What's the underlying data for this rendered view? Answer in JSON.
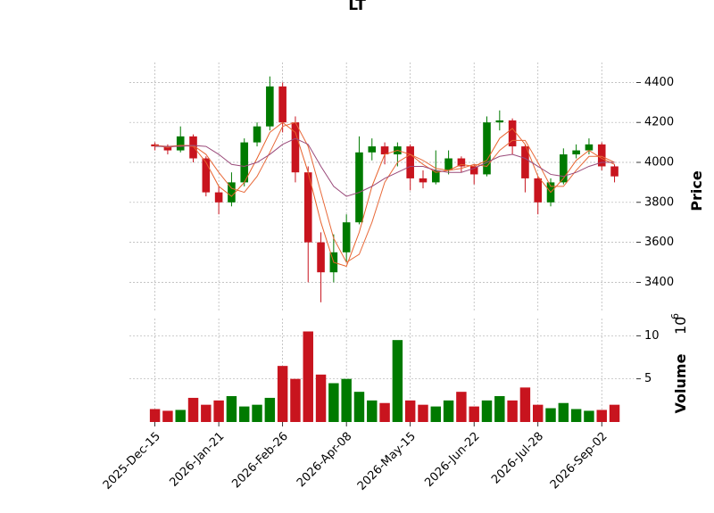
{
  "chart_data": {
    "type": "candlestick",
    "title": "LT",
    "ylabel": "Price",
    "grid": true,
    "up_color": "#007a00",
    "down_color": "#c8141e",
    "xlim": [
      -2,
      37.5
    ],
    "xticks": [
      {
        "value": 0,
        "label": "2025-Dec-15"
      },
      {
        "value": 5,
        "label": "2026-Jan-21"
      },
      {
        "value": 10,
        "label": "2026-Feb-26"
      },
      {
        "value": 15,
        "label": "2026-Apr-08"
      },
      {
        "value": 20,
        "label": "2026-May-15"
      },
      {
        "value": 25,
        "label": "2026-Jun-22"
      },
      {
        "value": 30,
        "label": "2026-Jul-28"
      },
      {
        "value": 35,
        "label": "2026-Sep-02"
      }
    ],
    "ylim": [
      3250,
      4500
    ],
    "yticks": [
      3400,
      3600,
      3800,
      4000,
      4200,
      4400
    ],
    "open": [
      4090,
      4080,
      4060,
      4130,
      4020,
      3850,
      3800,
      3900,
      4100,
      4180,
      4380,
      4200,
      3950,
      3600,
      3450,
      3550,
      3700,
      4050,
      4080,
      4040,
      4080,
      3920,
      3900,
      3960,
      4020,
      3980,
      3940,
      4200,
      4210,
      4080,
      3920,
      3800,
      3900,
      4040,
      4060,
      4090,
      3980
    ],
    "high": [
      4100,
      4090,
      4180,
      4140,
      4030,
      3880,
      3950,
      4120,
      4200,
      4430,
      4400,
      4230,
      3980,
      3650,
      3640,
      3740,
      4130,
      4120,
      4100,
      4100,
      4090,
      3960,
      4060,
      4060,
      4030,
      3990,
      4230,
      4260,
      4220,
      4090,
      3930,
      3920,
      4070,
      4090,
      4120,
      4100,
      3990
    ],
    "low": [
      4060,
      4040,
      4050,
      4000,
      3830,
      3740,
      3780,
      3880,
      4080,
      4160,
      4150,
      3900,
      3400,
      3300,
      3400,
      3500,
      3690,
      4010,
      3990,
      3980,
      3860,
      3870,
      3890,
      3940,
      3950,
      3890,
      3930,
      4160,
      4040,
      3850,
      3740,
      3780,
      3890,
      4020,
      4040,
      3960,
      3900
    ],
    "close": [
      4080,
      4060,
      4130,
      4020,
      3850,
      3800,
      3900,
      4100,
      4180,
      4380,
      4200,
      3950,
      3600,
      3450,
      3550,
      3700,
      4050,
      4080,
      4040,
      4080,
      3920,
      3900,
      3960,
      4020,
      3980,
      3940,
      4200,
      4210,
      4080,
      3920,
      3800,
      3900,
      4040,
      4060,
      4090,
      3980,
      3930
    ],
    "mav": [
      {
        "color": "#e8622c",
        "values": [
          4085,
          4075,
          4085,
          4080,
          4000,
          3880,
          3830,
          3900,
          4020,
          4150,
          4200,
          4150,
          3950,
          3700,
          3500,
          3480,
          3650,
          3880,
          4040,
          4060,
          4040,
          3990,
          3950,
          3960,
          3990,
          3980,
          4010,
          4120,
          4170,
          4090,
          3930,
          3850,
          3920,
          4010,
          4060,
          4020,
          3990
        ]
      },
      {
        "color": "#e86a3a",
        "values": [
          4085,
          4080,
          4085,
          4085,
          4040,
          3950,
          3870,
          3850,
          3930,
          4050,
          4180,
          4200,
          4080,
          3850,
          3620,
          3500,
          3540,
          3700,
          3900,
          4000,
          4040,
          4010,
          3970,
          3960,
          3970,
          3990,
          3980,
          4060,
          4110,
          4110,
          4000,
          3880,
          3880,
          3960,
          4030,
          4030,
          4000
        ]
      },
      {
        "color": "#9a4a7a",
        "values": [
          4080,
          4080,
          4080,
          4085,
          4080,
          4040,
          3990,
          3980,
          4000,
          4040,
          4090,
          4120,
          4090,
          3980,
          3880,
          3830,
          3850,
          3880,
          3920,
          3950,
          3980,
          3980,
          3960,
          3950,
          3950,
          3970,
          4000,
          4030,
          4040,
          4020,
          3980,
          3940,
          3930,
          3950,
          3980,
          4000,
          4000
        ]
      }
    ],
    "volume": {
      "label": "Volume",
      "offset_base": "10",
      "offset_exponent": "6",
      "ylim": [
        0,
        12
      ],
      "yticks": [
        5,
        10
      ],
      "values": [
        1.5,
        1.3,
        1.4,
        2.8,
        2.0,
        2.5,
        3.0,
        1.8,
        2.0,
        2.8,
        6.5,
        5.0,
        10.5,
        5.5,
        4.5,
        5.0,
        3.5,
        2.5,
        2.2,
        9.5,
        2.5,
        2.0,
        1.8,
        2.5,
        3.5,
        1.8,
        2.5,
        3.0,
        2.5,
        4.0,
        2.0,
        1.6,
        2.2,
        1.5,
        1.3,
        1.4,
        2.0
      ]
    }
  }
}
